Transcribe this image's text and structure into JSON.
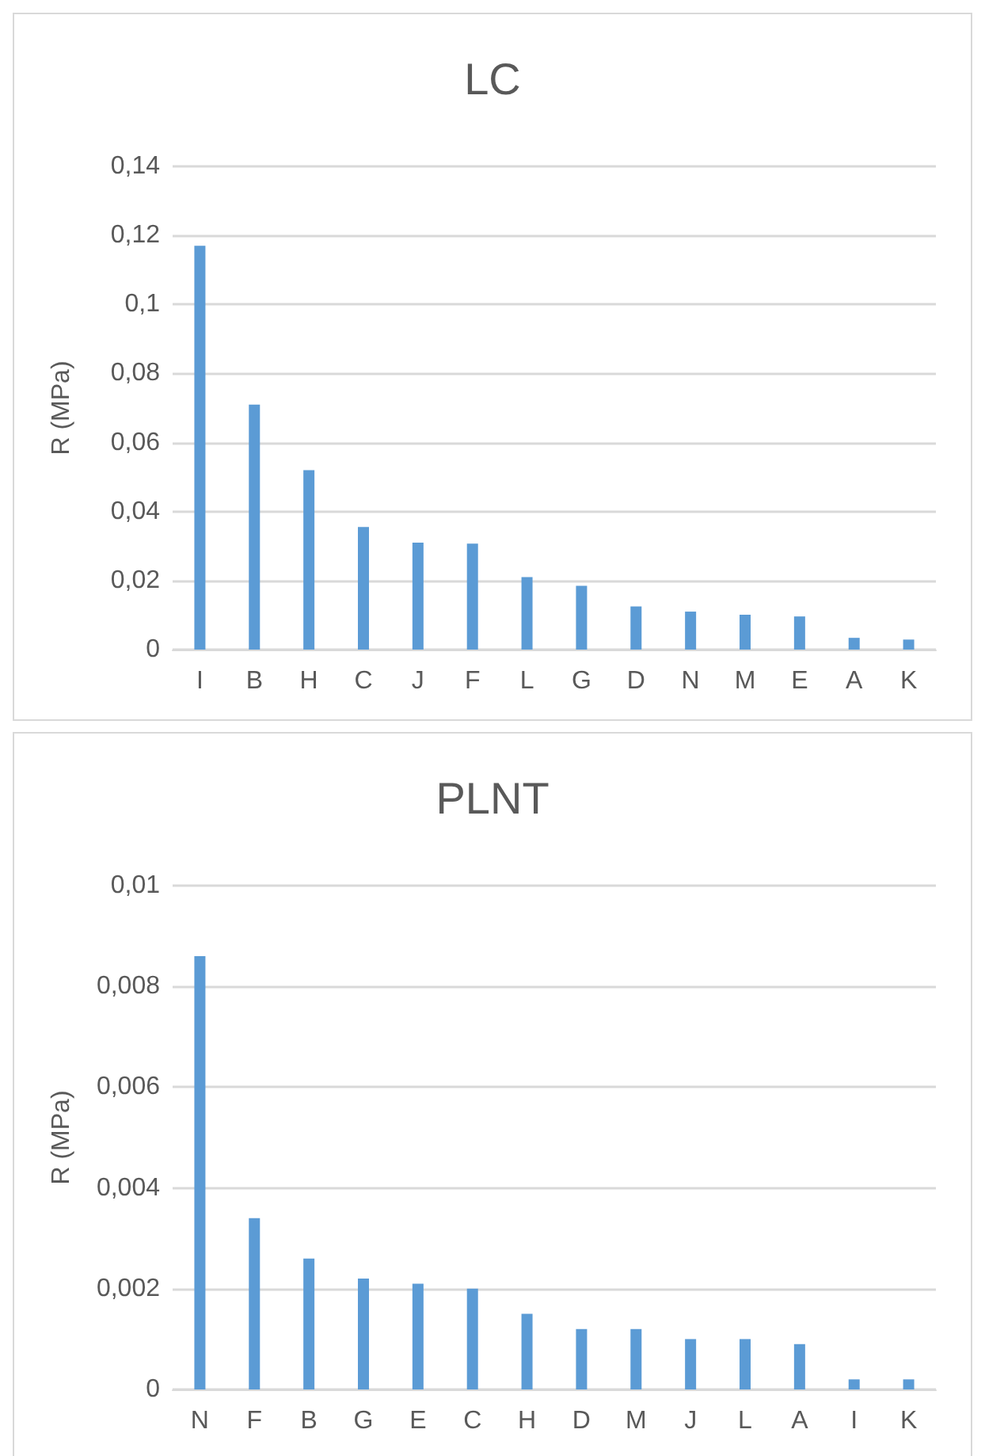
{
  "chart_data": [
    {
      "type": "bar",
      "title": "LC",
      "ylabel": "R (MPa)",
      "categories": [
        "I",
        "B",
        "H",
        "C",
        "J",
        "F",
        "L",
        "G",
        "D",
        "N",
        "M",
        "E",
        "A",
        "K"
      ],
      "series": [
        {
          "color": "#5b9bd5",
          "values": [
            0.117,
            0.071,
            0.052,
            0.0355,
            0.031,
            0.0307,
            0.021,
            0.0185,
            0.0125,
            0.011,
            0.0101,
            0.0096,
            0.0034,
            0.0029
          ]
        }
      ],
      "ylim": [
        0,
        0.14
      ],
      "yticks": [
        {
          "value": 0,
          "label": "0"
        },
        {
          "value": 0.02,
          "label": "0,02"
        },
        {
          "value": 0.04,
          "label": "0,04"
        },
        {
          "value": 0.06,
          "label": "0,06"
        },
        {
          "value": 0.08,
          "label": "0,08"
        },
        {
          "value": 0.1,
          "label": "0,1"
        },
        {
          "value": 0.12,
          "label": "0,12"
        },
        {
          "value": 0.14,
          "label": "0,14"
        }
      ],
      "grid": "y"
    },
    {
      "type": "bar",
      "title": "PLNT",
      "ylabel": "R (MPa)",
      "categories": [
        "N",
        "F",
        "B",
        "G",
        "E",
        "C",
        "H",
        "D",
        "M",
        "J",
        "L",
        "A",
        "I",
        "K"
      ],
      "series": [
        {
          "color": "#5b9bd5",
          "values": [
            0.0086,
            0.0034,
            0.0026,
            0.0022,
            0.0021,
            0.002,
            0.0015,
            0.0012,
            0.0012,
            0.001,
            0.001,
            0.0009,
            0.0002,
            0.0002
          ]
        }
      ],
      "ylim": [
        0,
        0.01
      ],
      "yticks": [
        {
          "value": 0,
          "label": "0"
        },
        {
          "value": 0.002,
          "label": "0,002"
        },
        {
          "value": 0.004,
          "label": "0,004"
        },
        {
          "value": 0.006,
          "label": "0,006"
        },
        {
          "value": 0.008,
          "label": "0,008"
        },
        {
          "value": 0.01,
          "label": "0,01"
        }
      ],
      "grid": "y"
    }
  ]
}
